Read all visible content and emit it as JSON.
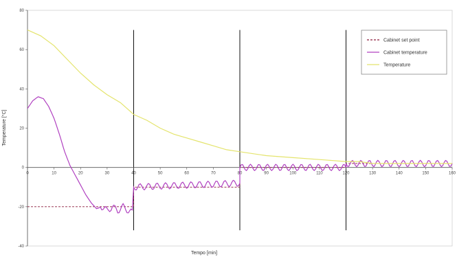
{
  "chart_data": {
    "type": "line",
    "xlabel": "Tempo [min]",
    "ylabel": "Temperature [°C]",
    "xlim": [
      0,
      160
    ],
    "ylim": [
      -40,
      80
    ],
    "x_ticks": [
      0,
      10,
      20,
      30,
      40,
      50,
      60,
      70,
      80,
      90,
      100,
      110,
      120,
      130,
      140,
      150,
      160
    ],
    "y_ticks": [
      -40,
      -20,
      0,
      20,
      40,
      60,
      80
    ],
    "grid": false,
    "legend_position": "top-right",
    "vertical_markers": [
      40,
      80,
      120
    ],
    "series": [
      {
        "name": "Cabinet set point",
        "color": "#8b1a3a",
        "style": "dashed",
        "points": [
          [
            0,
            -20
          ],
          [
            40,
            -20
          ],
          [
            40,
            -10
          ],
          [
            80,
            -10
          ],
          [
            80,
            0
          ],
          [
            120,
            0
          ],
          [
            120,
            2
          ],
          [
            160,
            2
          ]
        ]
      },
      {
        "name": "Cabinet temperature",
        "color": "#b040c0",
        "style": "solid",
        "points": [
          [
            0,
            30
          ],
          [
            2,
            34
          ],
          [
            4,
            36
          ],
          [
            6,
            35
          ],
          [
            8,
            31
          ],
          [
            10,
            25
          ],
          [
            12,
            17
          ],
          [
            14,
            8
          ],
          [
            16,
            1
          ],
          [
            18,
            -4
          ],
          [
            20,
            -9
          ],
          [
            22,
            -14
          ],
          [
            24,
            -18
          ],
          [
            26,
            -21
          ],
          [
            28,
            -20
          ],
          [
            30,
            -22
          ],
          [
            32,
            -20
          ],
          [
            34,
            -22
          ],
          [
            36,
            -20
          ],
          [
            38,
            -22
          ],
          [
            39.5,
            -23
          ],
          [
            40,
            -10
          ],
          [
            80,
            -8
          ],
          [
            80,
            0
          ],
          [
            120,
            0
          ],
          [
            120,
            2
          ],
          [
            160,
            2
          ]
        ]
      },
      {
        "name": "Temperature",
        "color": "#e4e46c",
        "style": "solid",
        "points": [
          [
            0,
            70
          ],
          [
            5,
            67
          ],
          [
            10,
            62
          ],
          [
            15,
            55
          ],
          [
            20,
            48
          ],
          [
            25,
            42
          ],
          [
            30,
            37
          ],
          [
            35,
            33
          ],
          [
            40,
            27
          ],
          [
            45,
            24
          ],
          [
            50,
            20
          ],
          [
            55,
            17
          ],
          [
            60,
            15
          ],
          [
            65,
            13
          ],
          [
            70,
            11
          ],
          [
            75,
            9
          ],
          [
            80,
            8
          ],
          [
            90,
            6
          ],
          [
            100,
            5
          ],
          [
            110,
            4
          ],
          [
            120,
            3
          ],
          [
            125,
            3
          ],
          [
            130,
            2
          ],
          [
            140,
            2
          ],
          [
            150,
            2
          ],
          [
            160,
            2
          ]
        ]
      }
    ]
  }
}
